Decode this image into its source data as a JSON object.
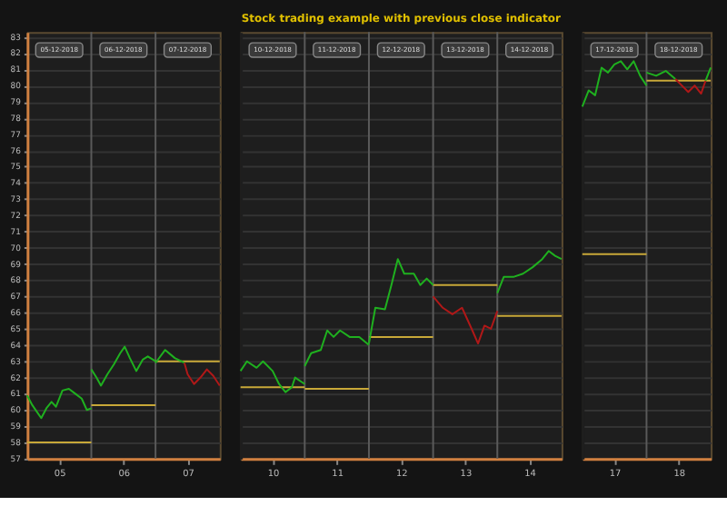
{
  "chart_data": [
    {
      "type": "line",
      "xlim": [
        4.5,
        7.5
      ],
      "ylim": [
        57,
        83.3
      ],
      "xticks": [
        {
          "value": 5,
          "label": "05"
        },
        {
          "value": 6,
          "label": "06"
        },
        {
          "value": 7,
          "label": "07"
        }
      ],
      "yticks": [
        57,
        58,
        59,
        60,
        61,
        62,
        63,
        64,
        65,
        66,
        67,
        68,
        69,
        70,
        71,
        72,
        73,
        74,
        75,
        76,
        77,
        78,
        79,
        80,
        81,
        82,
        83
      ],
      "annotations": [
        "05-12-2018",
        "06-12-2018",
        "07-12-2018"
      ],
      "grid": "y",
      "line_style": "solid",
      "marker": "none",
      "ref_lines": [
        {
          "axis": "x",
          "value": 5.5,
          "color": "#5a5a5a"
        },
        {
          "axis": "x",
          "value": 6.5,
          "color": "#5a5a5a"
        }
      ],
      "series": [
        {
          "color": "#c8a838",
          "x": [
            4.5,
            5.5,
            null,
            5.5,
            6.5,
            null,
            6.5,
            7.5
          ],
          "values": [
            58.0,
            58.0,
            null,
            60.3,
            60.3,
            null,
            63.0,
            63.0
          ]
        },
        {
          "color": "#1fb01f",
          "x": [
            4.5,
            4.58,
            4.65,
            4.72,
            4.8,
            4.88,
            4.95,
            5.05,
            5.15,
            5.25,
            5.35,
            5.43,
            5.5
          ],
          "values": [
            60.9,
            60.3,
            59.9,
            59.5,
            60.1,
            60.5,
            60.2,
            61.2,
            61.3,
            61.0,
            60.7,
            60.0,
            60.1
          ]
        },
        {
          "color": "#1fb01f",
          "x": [
            5.5,
            5.58,
            5.65,
            5.75,
            5.85,
            5.95,
            6.02,
            6.1,
            6.2,
            6.3,
            6.38,
            6.5
          ],
          "values": [
            62.5,
            62.0,
            61.5,
            62.2,
            62.8,
            63.5,
            63.9,
            63.2,
            62.4,
            63.1,
            63.3,
            63.0
          ]
        },
        {
          "color": "#1fb01f",
          "x": [
            6.5,
            6.65,
            6.8,
            6.9,
            6.95
          ],
          "values": [
            62.9,
            63.7,
            63.2,
            63.0,
            62.9
          ]
        },
        {
          "color": "#b01818",
          "x": [
            6.95,
            7.0,
            7.1,
            7.2,
            7.3,
            7.4,
            7.5
          ],
          "values": [
            62.9,
            62.2,
            61.6,
            62.0,
            62.5,
            62.1,
            61.5
          ]
        }
      ]
    },
    {
      "type": "line",
      "title": "Stock trading example with previous close indicator",
      "xlim": [
        9.5,
        14.5
      ],
      "ylim": [
        57,
        83.3
      ],
      "xticks": [
        10,
        11,
        12,
        13,
        14
      ],
      "yticks": [
        57,
        58,
        59,
        60,
        61,
        62,
        63,
        64,
        65,
        66,
        67,
        68,
        69,
        70,
        71,
        72,
        73,
        74,
        75,
        76,
        77,
        78,
        79,
        80,
        81,
        82,
        83
      ],
      "tick_labels": "x",
      "annotations": [
        "10-12-2018",
        "11-12-2018",
        "12-12-2018",
        "13-12-2018",
        "14-12-2018"
      ],
      "grid": "y",
      "line_style": "solid",
      "marker": "none",
      "ref_lines": [
        {
          "axis": "x",
          "value": 10.5,
          "color": "#5a5a5a"
        },
        {
          "axis": "x",
          "value": 11.5,
          "color": "#5a5a5a"
        },
        {
          "axis": "x",
          "value": 12.5,
          "color": "#5a5a5a"
        },
        {
          "axis": "x",
          "value": 13.5,
          "color": "#5a5a5a"
        }
      ],
      "series": [
        {
          "color": "#c8a838",
          "x": [
            9.5,
            10.5,
            null,
            10.5,
            11.5,
            null,
            11.5,
            12.5,
            null,
            12.5,
            13.5,
            null,
            13.5,
            14.5
          ],
          "values": [
            61.4,
            61.4,
            null,
            61.3,
            61.3,
            null,
            64.5,
            64.5,
            null,
            67.7,
            67.7,
            null,
            65.8,
            65.8
          ]
        },
        {
          "color": "#1fb01f",
          "x": [
            9.5,
            9.6,
            9.75,
            9.85,
            10.0,
            10.1,
            10.2,
            10.3,
            10.35,
            10.5
          ],
          "values": [
            62.4,
            63.0,
            62.6,
            63.0,
            62.4,
            61.6,
            61.1,
            61.4,
            62.0,
            61.6
          ]
        },
        {
          "color": "#1fb01f",
          "x": [
            10.5,
            10.6,
            10.75,
            10.85,
            10.95,
            11.05,
            11.2,
            11.35,
            11.5
          ],
          "values": [
            62.7,
            63.5,
            63.7,
            64.9,
            64.5,
            64.9,
            64.5,
            64.5,
            64.0
          ]
        },
        {
          "color": "#1fb01f",
          "x": [
            11.5,
            11.6,
            11.75,
            11.85,
            11.95,
            12.05,
            12.2,
            12.3,
            12.4,
            12.5
          ],
          "values": [
            64.1,
            66.3,
            66.2,
            67.7,
            69.3,
            68.4,
            68.4,
            67.7,
            68.1,
            67.7
          ]
        },
        {
          "color": "#b01818",
          "x": [
            12.5,
            12.65,
            12.8,
            12.95,
            13.1,
            13.2,
            13.3,
            13.4,
            13.5
          ],
          "values": [
            67.0,
            66.3,
            65.9,
            66.3,
            65.0,
            64.1,
            65.2,
            65.0,
            66.1
          ]
        },
        {
          "color": "#1fb01f",
          "x": [
            13.5,
            13.6,
            13.75,
            13.9,
            14.05,
            14.2,
            14.3,
            14.4,
            14.5
          ],
          "values": [
            67.2,
            68.2,
            68.2,
            68.4,
            68.8,
            69.3,
            69.8,
            69.5,
            69.3
          ]
        }
      ]
    },
    {
      "type": "line",
      "xlim": [
        16.5,
        18.5
      ],
      "ylim": [
        57,
        83.3
      ],
      "xticks": [
        17,
        18
      ],
      "yticks": [
        57,
        58,
        59,
        60,
        61,
        62,
        63,
        64,
        65,
        66,
        67,
        68,
        69,
        70,
        71,
        72,
        73,
        74,
        75,
        76,
        77,
        78,
        79,
        80,
        81,
        82,
        83
      ],
      "tick_labels": "x",
      "annotations": [
        "17-12-2018",
        "18-12-2018"
      ],
      "grid": "y",
      "line_style": "solid",
      "marker": "none",
      "ref_lines": [
        {
          "axis": "x",
          "value": 17.5,
          "color": "#5a5a5a"
        }
      ],
      "series": [
        {
          "color": "#c8a838",
          "x": [
            16.5,
            17.5,
            null,
            17.5,
            18.5
          ],
          "values": [
            69.6,
            69.6,
            null,
            80.3,
            80.3
          ]
        },
        {
          "color": "#1fb01f",
          "x": [
            16.5,
            16.6,
            16.7,
            16.8,
            16.9,
            17.0,
            17.1,
            17.2,
            17.3,
            17.4,
            17.5
          ],
          "values": [
            78.7,
            79.7,
            79.4,
            81.1,
            80.8,
            81.3,
            81.5,
            81.0,
            81.5,
            80.6,
            80.0
          ]
        },
        {
          "color": "#1fb01f",
          "x": [
            17.5,
            17.65,
            17.8,
            17.95
          ],
          "values": [
            80.8,
            80.6,
            80.9,
            80.4
          ]
        },
        {
          "color": "#b01818",
          "x": [
            17.95,
            18.05,
            18.15,
            18.25,
            18.35,
            18.42
          ],
          "values": [
            80.4,
            80.0,
            79.6,
            80.0,
            79.5,
            80.3
          ]
        },
        {
          "color": "#1fb01f",
          "x": [
            18.42,
            18.5
          ],
          "values": [
            80.3,
            81.1
          ]
        }
      ]
    }
  ]
}
